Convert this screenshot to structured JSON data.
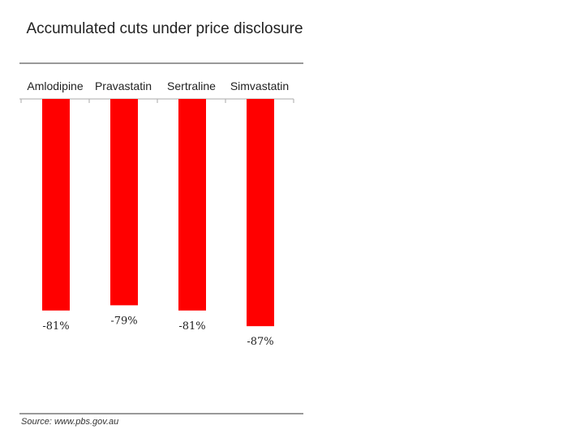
{
  "chart_data": {
    "type": "bar",
    "title": "Accumulated cuts under price disclosure",
    "categories": [
      "Amlodipine",
      "Pravastatin",
      "Sertraline",
      "Simvastatin"
    ],
    "values": [
      -81,
      -79,
      -81,
      -87
    ],
    "value_labels": [
      "-81%",
      "-79%",
      "-81%",
      "-87%"
    ],
    "unit": "%",
    "xlabel": "",
    "ylabel": "",
    "ylim": [
      -100,
      0
    ],
    "grid": false,
    "legend": "none",
    "bar_color": "#ff0000",
    "source": "Source: www.pbs.gov.au"
  }
}
